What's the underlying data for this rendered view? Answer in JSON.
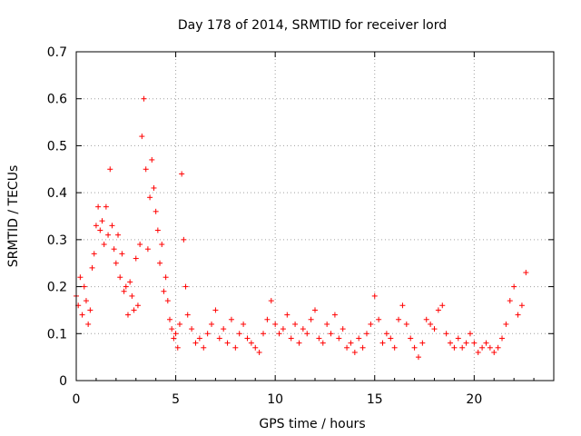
{
  "chart_data": {
    "type": "scatter",
    "title": "Day 178 of 2014, SRMTID for receiver lord",
    "xlabel": "GPS time / hours",
    "ylabel": "SRMTID / TECUs",
    "xlim": [
      0,
      24
    ],
    "ylim": [
      0,
      0.7
    ],
    "xticks": [
      0,
      5,
      10,
      15,
      20
    ],
    "xtick_labels": [
      "0",
      "5",
      "10",
      "15",
      "20"
    ],
    "yticks": [
      0,
      0.1,
      0.2,
      0.3,
      0.4,
      0.5,
      0.6,
      0.7
    ],
    "ytick_labels": [
      "0",
      "0.1",
      "0.2",
      "0.3",
      "0.4",
      "0.5",
      "0.6",
      "0.7"
    ],
    "grid": true,
    "marker": "+",
    "colors": {
      "series": "#ff0000",
      "grid": "#a0a0a0",
      "axis": "#000000"
    },
    "series": [
      {
        "name": "SRMTID",
        "x": [
          0.0,
          0.1,
          0.2,
          0.3,
          0.4,
          0.5,
          0.6,
          0.7,
          0.8,
          0.9,
          1.0,
          1.1,
          1.2,
          1.3,
          1.4,
          1.5,
          1.6,
          1.7,
          1.8,
          1.9,
          2.0,
          2.1,
          2.2,
          2.3,
          2.4,
          2.5,
          2.6,
          2.7,
          2.8,
          2.9,
          3.0,
          3.1,
          3.2,
          3.3,
          3.4,
          3.5,
          3.6,
          3.7,
          3.8,
          3.9,
          4.0,
          4.1,
          4.2,
          4.3,
          4.4,
          4.5,
          4.6,
          4.7,
          4.8,
          4.9,
          5.0,
          5.1,
          5.2,
          5.3,
          5.4,
          5.5,
          5.6,
          5.8,
          6.0,
          6.2,
          6.4,
          6.6,
          6.8,
          7.0,
          7.2,
          7.4,
          7.6,
          7.8,
          8.0,
          8.2,
          8.4,
          8.6,
          8.8,
          9.0,
          9.2,
          9.4,
          9.6,
          9.8,
          10.0,
          10.2,
          10.4,
          10.6,
          10.8,
          11.0,
          11.2,
          11.4,
          11.6,
          11.8,
          12.0,
          12.2,
          12.4,
          12.6,
          12.8,
          13.0,
          13.2,
          13.4,
          13.6,
          13.8,
          14.0,
          14.2,
          14.4,
          14.6,
          14.8,
          15.0,
          15.2,
          15.4,
          15.6,
          15.8,
          16.0,
          16.2,
          16.4,
          16.6,
          16.8,
          17.0,
          17.2,
          17.4,
          17.6,
          17.8,
          18.0,
          18.2,
          18.4,
          18.6,
          18.8,
          19.0,
          19.2,
          19.4,
          19.6,
          19.8,
          20.0,
          20.2,
          20.4,
          20.6,
          20.8,
          21.0,
          21.2,
          21.4,
          21.6,
          21.8,
          22.0,
          22.2,
          22.4,
          22.6
        ],
        "y": [
          0.18,
          0.16,
          0.22,
          0.14,
          0.2,
          0.17,
          0.12,
          0.15,
          0.24,
          0.27,
          0.33,
          0.37,
          0.32,
          0.34,
          0.29,
          0.37,
          0.31,
          0.45,
          0.33,
          0.28,
          0.25,
          0.31,
          0.22,
          0.27,
          0.19,
          0.2,
          0.14,
          0.21,
          0.18,
          0.15,
          0.26,
          0.16,
          0.29,
          0.52,
          0.6,
          0.45,
          0.28,
          0.39,
          0.47,
          0.41,
          0.36,
          0.32,
          0.25,
          0.29,
          0.19,
          0.22,
          0.17,
          0.13,
          0.11,
          0.09,
          0.1,
          0.07,
          0.12,
          0.44,
          0.3,
          0.2,
          0.14,
          0.11,
          0.08,
          0.09,
          0.07,
          0.1,
          0.12,
          0.15,
          0.09,
          0.11,
          0.08,
          0.13,
          0.07,
          0.1,
          0.12,
          0.09,
          0.08,
          0.07,
          0.06,
          0.1,
          0.13,
          0.17,
          0.12,
          0.1,
          0.11,
          0.14,
          0.09,
          0.12,
          0.08,
          0.11,
          0.1,
          0.13,
          0.15,
          0.09,
          0.08,
          0.12,
          0.1,
          0.14,
          0.09,
          0.11,
          0.07,
          0.08,
          0.06,
          0.09,
          0.07,
          0.1,
          0.12,
          0.18,
          0.13,
          0.08,
          0.1,
          0.09,
          0.07,
          0.13,
          0.16,
          0.12,
          0.09,
          0.07,
          0.05,
          0.08,
          0.13,
          0.12,
          0.11,
          0.15,
          0.16,
          0.1,
          0.08,
          0.07,
          0.09,
          0.07,
          0.08,
          0.1,
          0.08,
          0.06,
          0.07,
          0.08,
          0.07,
          0.06,
          0.07,
          0.09,
          0.12,
          0.17,
          0.2,
          0.14,
          0.16,
          0.23
        ]
      }
    ]
  }
}
